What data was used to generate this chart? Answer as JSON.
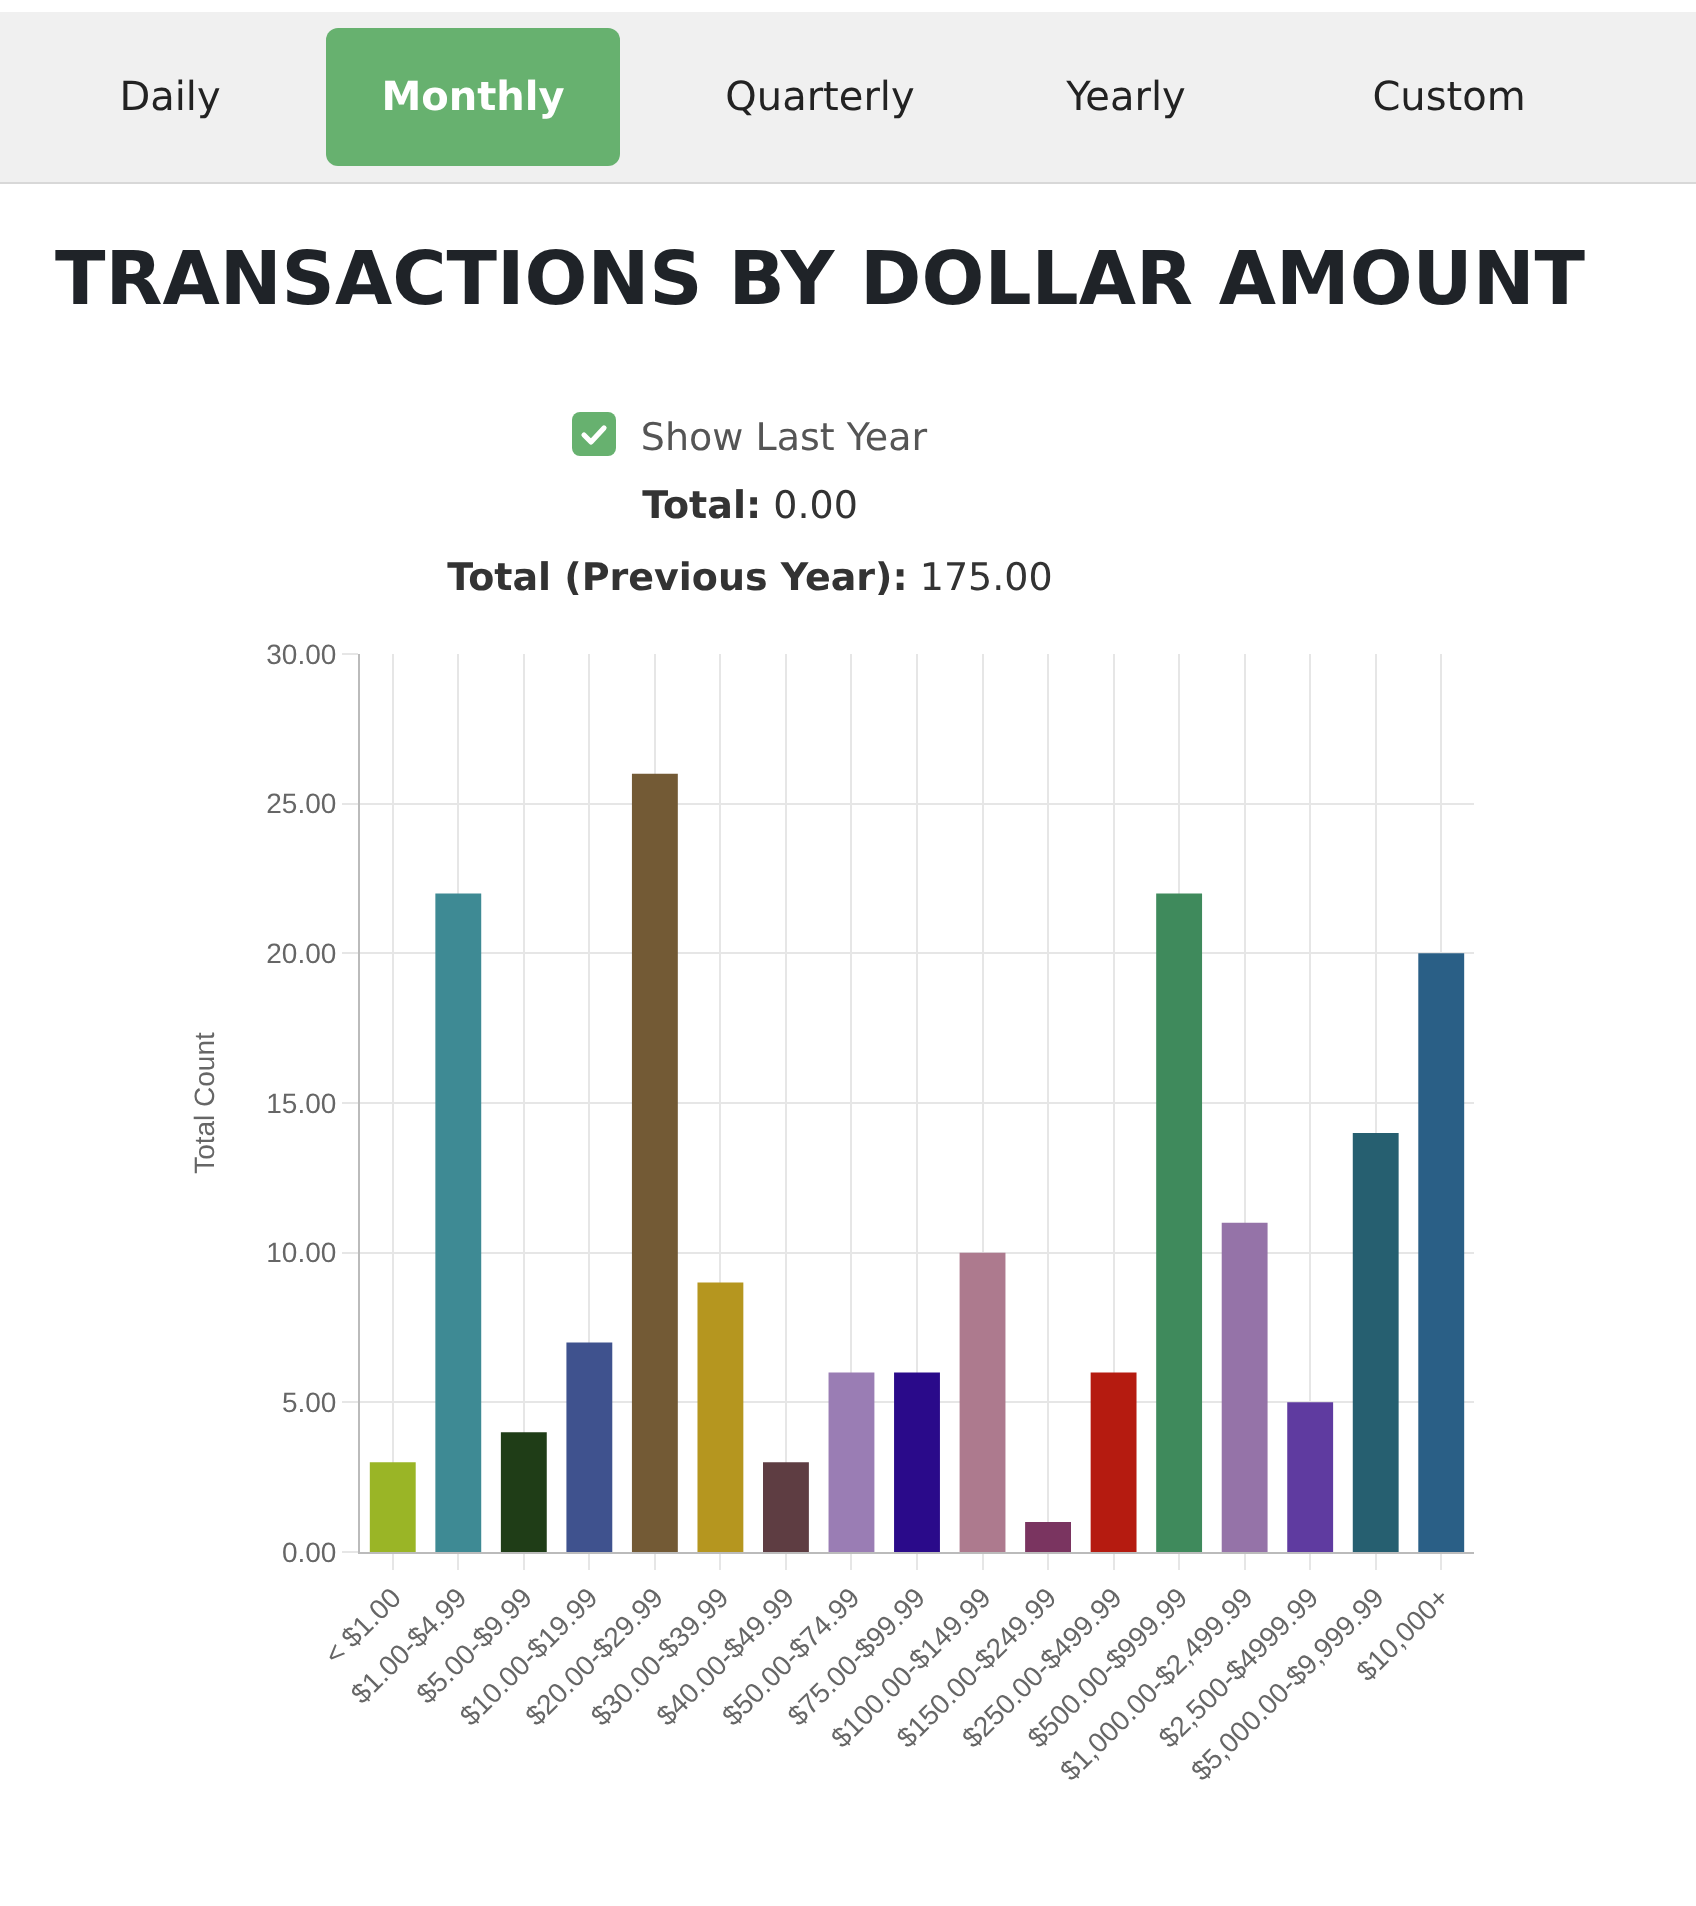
{
  "chart_data": {
    "type": "bar",
    "title": "TRANSACTIONS BY DOLLAR AMOUNT",
    "annotations": [
      "Daily",
      "Monthly",
      "Quarterly",
      "Yearly",
      "Custom",
      "Show Last Year",
      "Total: 0.00",
      "Total (Previous Year): 175.00"
    ],
    "ylabel": "Total Count",
    "categories": [
      "< $1.00",
      "$1.00-$4.99",
      "$5.00-$9.99",
      "$10.00-$19.99",
      "$20.00-$29.99",
      "$30.00-$39.99",
      "$40.00-$49.99",
      "$50.00-$74.99",
      "$75.00-$99.99",
      "$100.00-$149.99",
      "$150.00-$249.99",
      "$250.00-$499.99",
      "$500.00-$999.99",
      "$1,000.00-$2,499.99",
      "$2,500-$4999.99",
      "$5,000.00-$9,999.99",
      "$10,000+"
    ],
    "values": [
      3,
      22,
      4,
      7,
      26,
      9,
      3,
      6,
      6,
      10,
      1,
      6,
      22,
      11,
      5,
      14,
      20
    ],
    "colors": [
      "#9ab526",
      "#3e8a94",
      "#1f3d17",
      "#3f528e",
      "#735a35",
      "#b5961f",
      "#5e3d42",
      "#9a7db4",
      "#2a0a8a",
      "#ad7a8e",
      "#7a3460",
      "#b51b10",
      "#3f8a5c",
      "#9573a8",
      "#5f3ba0",
      "#265f70",
      "#2a5f86"
    ],
    "ylim": [
      0,
      30
    ],
    "yticks": [
      {
        "value": 0,
        "label": "0.00"
      },
      {
        "value": 5,
        "label": "5.00"
      },
      {
        "value": 10,
        "label": "10.00"
      },
      {
        "value": 15,
        "label": "15.00"
      },
      {
        "value": 20,
        "label": "20.00"
      },
      {
        "value": 25,
        "label": "25.00"
      },
      {
        "value": 30,
        "label": "30.00"
      }
    ],
    "grid": true
  }
}
